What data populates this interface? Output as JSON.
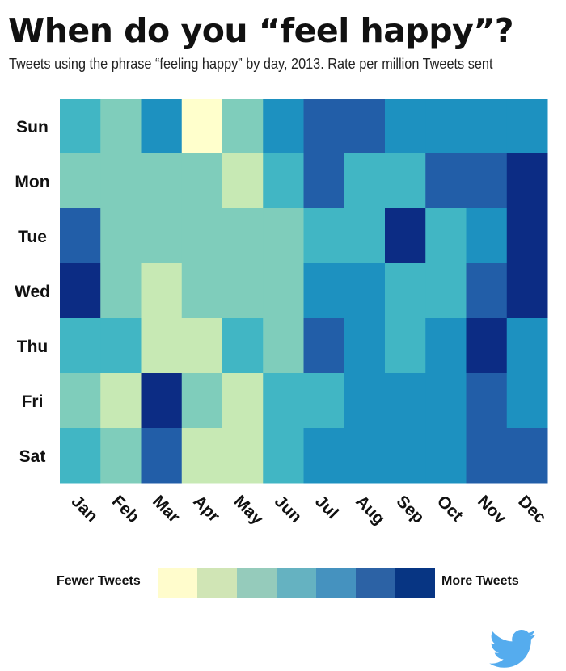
{
  "header": {
    "title": "When do you “feel happy”?",
    "subtitle": "Tweets using the phrase “feeling happy” by day, 2013. Rate per million Tweets sent"
  },
  "chart_data": {
    "type": "heatmap",
    "title": "When do you “feel happy”?",
    "x": [
      "Jan",
      "Feb",
      "Mar",
      "Apr",
      "May",
      "Jun",
      "Jul",
      "Aug",
      "Sep",
      "Oct",
      "Nov",
      "Dec"
    ],
    "y": [
      "Sun",
      "Mon",
      "Tue",
      "Wed",
      "Thu",
      "Fri",
      "Sat"
    ],
    "value_scale": "level 1 (fewer tweets) to 7 (more tweets)",
    "values": [
      [
        4,
        3,
        5,
        1,
        3,
        5,
        6,
        6,
        5,
        5,
        5,
        5
      ],
      [
        3,
        3,
        3,
        3,
        2,
        4,
        6,
        4,
        4,
        6,
        6,
        7
      ],
      [
        6,
        3,
        3,
        3,
        3,
        3,
        4,
        4,
        7,
        4,
        5,
        7
      ],
      [
        7,
        3,
        2,
        3,
        3,
        3,
        5,
        5,
        4,
        4,
        6,
        7
      ],
      [
        4,
        4,
        2,
        2,
        4,
        3,
        6,
        5,
        4,
        5,
        7,
        5
      ],
      [
        3,
        2,
        7,
        3,
        2,
        4,
        4,
        5,
        5,
        5,
        6,
        5
      ],
      [
        4,
        3,
        6,
        2,
        2,
        4,
        5,
        5,
        5,
        5,
        6,
        6
      ]
    ],
    "colors": [
      "#ffffcc",
      "#c7e9b4",
      "#7fcdbb",
      "#41b6c4",
      "#1d91c0",
      "#225ea8",
      "#0c2c84"
    ],
    "legend": {
      "low_label": "Fewer Tweets",
      "high_label": "More Tweets",
      "colors": [
        "#fffccc",
        "#d0e5b5",
        "#95cbbb",
        "#65b2c1",
        "#4592bf",
        "#2c62a5",
        "#073583"
      ],
      "placement": "bottom"
    }
  },
  "logo": {
    "icon": "twitter-bird-icon",
    "color": "#55acee"
  }
}
